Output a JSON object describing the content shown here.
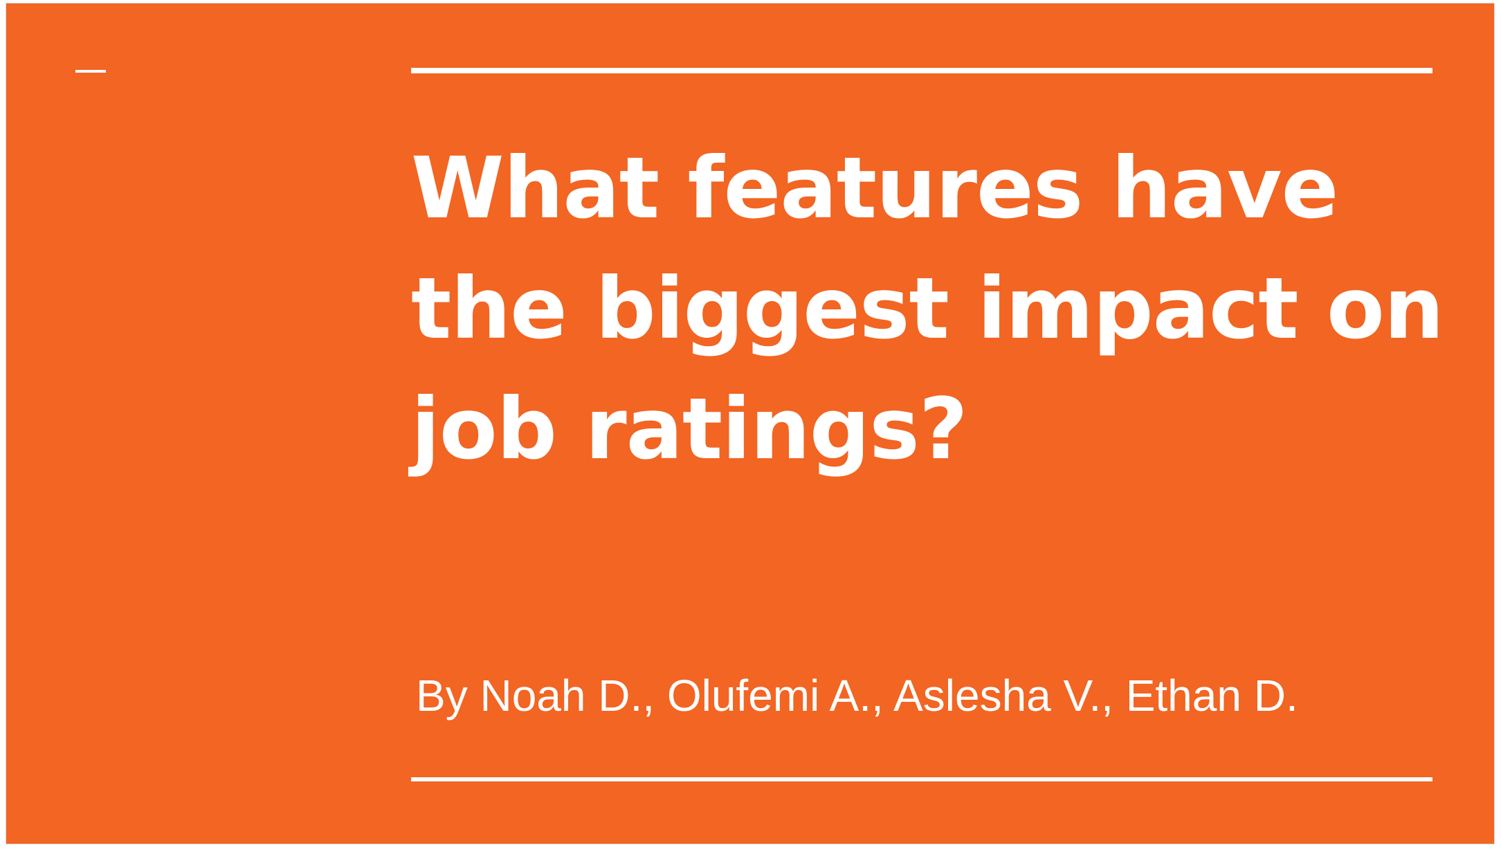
{
  "slide": {
    "background_color": "#F26522",
    "accent_color": "#FFFFFF",
    "title": "What features have the biggest impact on job ratings?",
    "subtitle": "By Noah D., Olufemi A., Aslesha V., Ethan D."
  }
}
